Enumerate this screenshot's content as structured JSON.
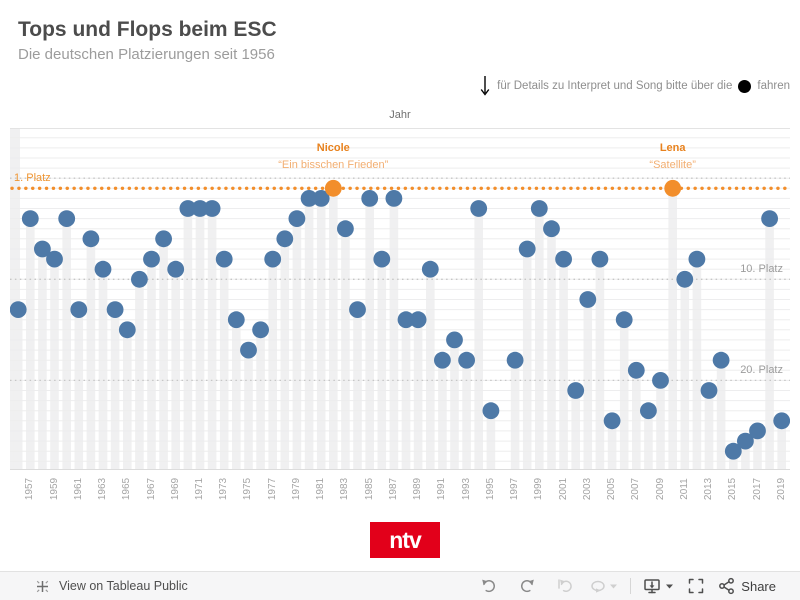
{
  "header": {
    "title": "Tops und Flops beim ESC",
    "subtitle": "Die deutschen Platzierungen seit 1956",
    "hint_text": "für Details zu Interpret und Song bitte über die",
    "hint_suffix": "fahren"
  },
  "chart_data": {
    "type": "scatter",
    "xlabel": "Jahr",
    "y_unit": "Platz",
    "x_range": [
      1955.5,
      2020
    ],
    "y_direction": "1 = best, increasing downwards",
    "grid": "horizontal light lines, one per place",
    "point_color": "#4e79a7",
    "highlight_color": "#f28e2b",
    "x_ticks": [
      "1957",
      "1959",
      "1961",
      "1963",
      "1965",
      "1967",
      "1969",
      "1971",
      "1973",
      "1975",
      "1977",
      "1979",
      "1981",
      "1983",
      "1985",
      "1987",
      "1989",
      "1991",
      "1993",
      "1995",
      "1997",
      "1999",
      "2001",
      "2003",
      "2005",
      "2007",
      "2009",
      "2011",
      "2013",
      "2015",
      "2017",
      "2019"
    ],
    "reference_lines": [
      {
        "label": "1. Platz",
        "place": 1,
        "style": "orange-dotted",
        "side": "left"
      },
      {
        "label": "10. Platz",
        "place": 10,
        "style": "gray-dotted",
        "side": "right"
      },
      {
        "label": "20. Platz",
        "place": 20,
        "style": "gray-dotted",
        "side": "right"
      }
    ],
    "annotations": [
      {
        "name": "Nicole",
        "song": "“Ein bisschen Frieden”",
        "year": 1982
      },
      {
        "name": "Lena",
        "song": "“Satellite”",
        "year": 2010
      }
    ],
    "points": [
      {
        "year": 1956,
        "place": 13
      },
      {
        "year": 1957,
        "place": 4
      },
      {
        "year": 1958,
        "place": 7
      },
      {
        "year": 1959,
        "place": 8
      },
      {
        "year": 1960,
        "place": 4
      },
      {
        "year": 1961,
        "place": 13
      },
      {
        "year": 1962,
        "place": 6
      },
      {
        "year": 1963,
        "place": 9
      },
      {
        "year": 1964,
        "place": 13
      },
      {
        "year": 1965,
        "place": 15
      },
      {
        "year": 1966,
        "place": 10
      },
      {
        "year": 1967,
        "place": 8
      },
      {
        "year": 1968,
        "place": 6
      },
      {
        "year": 1969,
        "place": 9
      },
      {
        "year": 1970,
        "place": 3
      },
      {
        "year": 1971,
        "place": 3
      },
      {
        "year": 1972,
        "place": 3
      },
      {
        "year": 1973,
        "place": 8
      },
      {
        "year": 1974,
        "place": 14
      },
      {
        "year": 1975,
        "place": 17
      },
      {
        "year": 1976,
        "place": 15
      },
      {
        "year": 1977,
        "place": 8
      },
      {
        "year": 1978,
        "place": 6
      },
      {
        "year": 1979,
        "place": 4
      },
      {
        "year": 1980,
        "place": 2
      },
      {
        "year": 1981,
        "place": 2
      },
      {
        "year": 1982,
        "place": 1,
        "highlight": true
      },
      {
        "year": 1983,
        "place": 5
      },
      {
        "year": 1984,
        "place": 13
      },
      {
        "year": 1985,
        "place": 2
      },
      {
        "year": 1986,
        "place": 8
      },
      {
        "year": 1987,
        "place": 2
      },
      {
        "year": 1988,
        "place": 14
      },
      {
        "year": 1989,
        "place": 14
      },
      {
        "year": 1990,
        "place": 9
      },
      {
        "year": 1991,
        "place": 18
      },
      {
        "year": 1992,
        "place": 16
      },
      {
        "year": 1993,
        "place": 18
      },
      {
        "year": 1994,
        "place": 3
      },
      {
        "year": 1995,
        "place": 23
      },
      {
        "year": 1997,
        "place": 18
      },
      {
        "year": 1998,
        "place": 7
      },
      {
        "year": 1999,
        "place": 3
      },
      {
        "year": 2000,
        "place": 5
      },
      {
        "year": 2001,
        "place": 8
      },
      {
        "year": 2002,
        "place": 21
      },
      {
        "year": 2003,
        "place": 12
      },
      {
        "year": 2004,
        "place": 8
      },
      {
        "year": 2005,
        "place": 24
      },
      {
        "year": 2006,
        "place": 14
      },
      {
        "year": 2007,
        "place": 19
      },
      {
        "year": 2008,
        "place": 23
      },
      {
        "year": 2009,
        "place": 20
      },
      {
        "year": 2010,
        "place": 1,
        "highlight": true
      },
      {
        "year": 2011,
        "place": 10
      },
      {
        "year": 2012,
        "place": 8
      },
      {
        "year": 2013,
        "place": 21
      },
      {
        "year": 2014,
        "place": 18
      },
      {
        "year": 2015,
        "place": 27
      },
      {
        "year": 2016,
        "place": 26
      },
      {
        "year": 2017,
        "place": 25
      },
      {
        "year": 2018,
        "place": 4
      },
      {
        "year": 2019,
        "place": 24
      }
    ]
  },
  "logo": {
    "text": "ntv"
  },
  "toolbar": {
    "view_label": "View on Tableau Public",
    "share_label": "Share",
    "icons": [
      "undo",
      "redo",
      "replay",
      "refresh",
      "download",
      "fullscreen",
      "share"
    ]
  },
  "colors": {
    "band": "#f0f0f1",
    "grid": "#ededee",
    "gray_dotted": "#c6c6c6",
    "ntv_red": "#e2001a"
  }
}
